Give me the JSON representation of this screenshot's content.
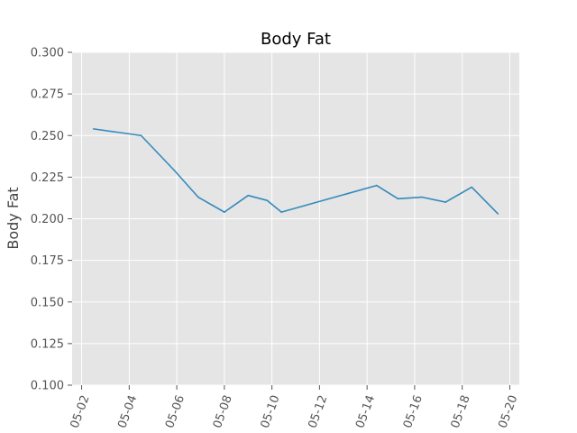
{
  "chart_data": {
    "type": "line",
    "title": "Body Fat",
    "xlabel": "",
    "ylabel": "Body Fat",
    "x_tick_labels": [
      "05-02",
      "05-04",
      "05-06",
      "05-08",
      "05-10",
      "05-12",
      "05-14",
      "05-16",
      "05-18",
      "05-20"
    ],
    "y_tick_labels": [
      "0.100",
      "0.125",
      "0.150",
      "0.175",
      "0.200",
      "0.225",
      "0.250",
      "0.275",
      "0.300"
    ],
    "ylim": [
      0.1,
      0.3
    ],
    "xlim_days": [
      1.6,
      20.4
    ],
    "grid": true,
    "series": [
      {
        "color": "#348abd",
        "x": [
          "05-02",
          "05-04",
          "05-06",
          "05-07",
          "05-08",
          "05-09",
          "05-10",
          "05-10",
          "05-14",
          "05-15",
          "05-16",
          "05-17",
          "05-18",
          "05-19"
        ],
        "x_days": [
          2.5,
          4.5,
          5.9,
          6.9,
          8.0,
          9.0,
          9.8,
          10.4,
          14.4,
          15.3,
          16.3,
          17.3,
          18.4,
          19.5
        ],
        "y": [
          0.254,
          0.25,
          0.229,
          0.213,
          0.204,
          0.214,
          0.211,
          0.204,
          0.22,
          0.212,
          0.213,
          0.21,
          0.219,
          0.203
        ]
      }
    ]
  },
  "colors": {
    "plot_background": "#e5e5e5",
    "grid": "#ffffff",
    "line": "#348abd"
  }
}
